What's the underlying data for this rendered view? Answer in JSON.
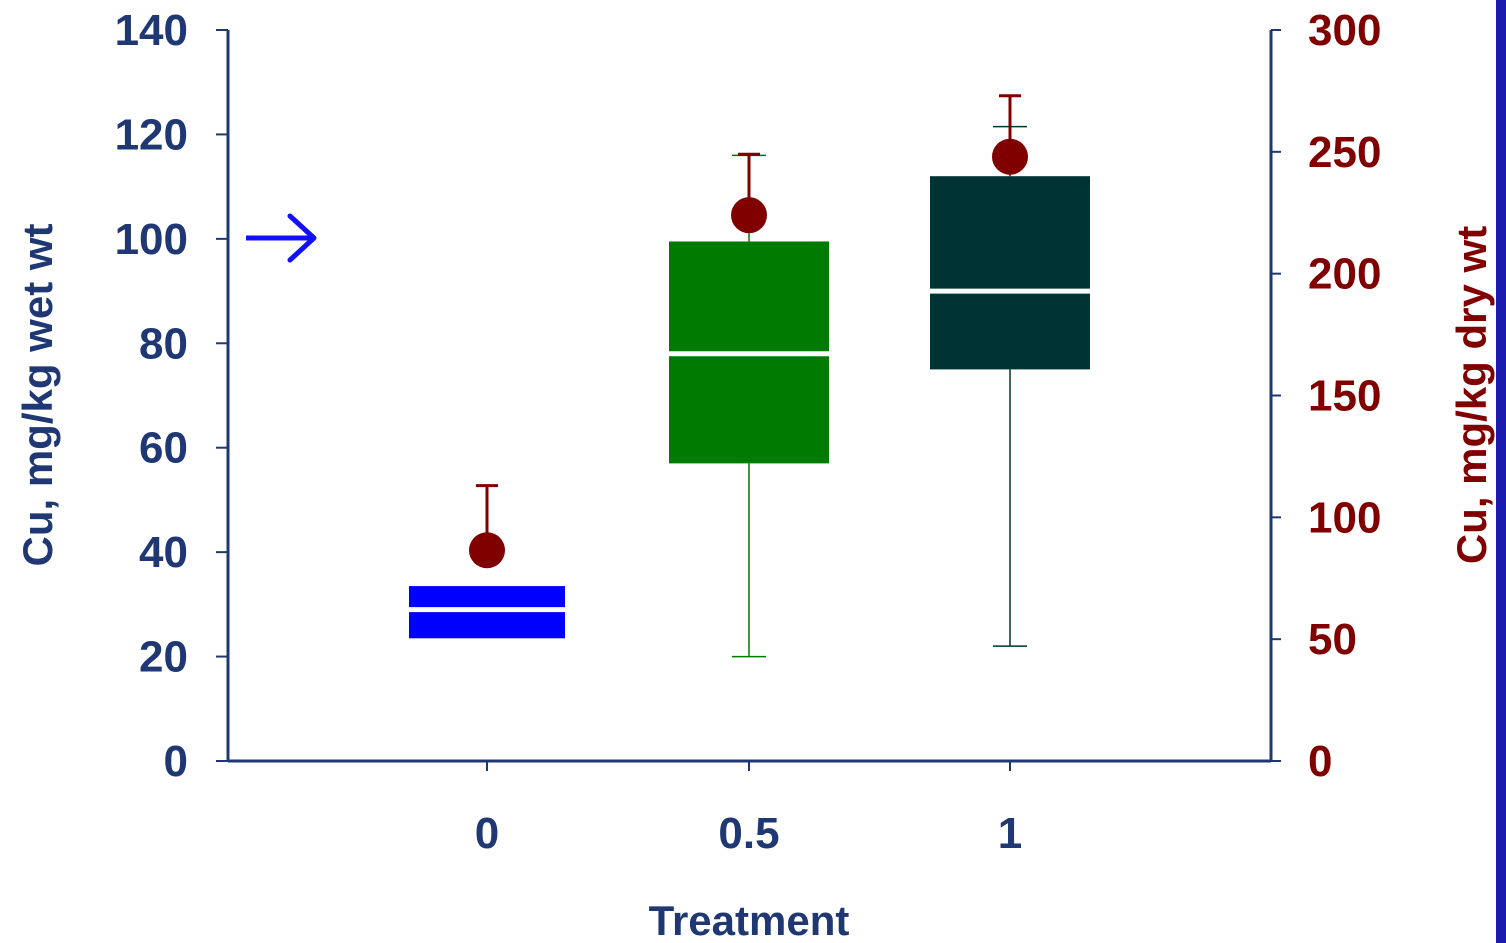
{
  "chart_data": {
    "type": "box",
    "title": "",
    "xlabel": "Treatment",
    "ylabel": "Cu, mg/kg wet wt",
    "y2label": "Cu, mg/kg dry wt",
    "categories": [
      "0",
      "0.5",
      "1"
    ],
    "ylim": [
      0,
      140
    ],
    "y2lim": [
      0,
      300
    ],
    "yticks": [
      "0",
      "20",
      "40",
      "60",
      "80",
      "100",
      "120",
      "140"
    ],
    "y2ticks": [
      "0",
      "50",
      "100",
      "150",
      "200",
      "250",
      "300"
    ],
    "grid": false,
    "boxes": [
      {
        "category": "0",
        "min": 23.5,
        "q1": 23.5,
        "median": 29,
        "q3": 33.5,
        "max": 33.5,
        "color": "#0000ff"
      },
      {
        "category": "0.5",
        "min": 20,
        "q1": 57,
        "median": 78,
        "q3": 99.5,
        "max": 116,
        "color": "#007a00"
      },
      {
        "category": "1",
        "min": 22,
        "q1": 75,
        "median": 90,
        "q3": 112,
        "max": 121.5,
        "color": "#003333"
      }
    ],
    "dry_weight_points": [
      {
        "category": "0",
        "mean": 86.5,
        "upper": 113
      },
      {
        "category": "0.5",
        "mean": 224,
        "upper": 249
      },
      {
        "category": "1",
        "mean": 248,
        "upper": 273
      }
    ],
    "annotations": [
      {
        "type": "arrow",
        "direction": "right",
        "at_y": 100,
        "color": "#1010ff"
      }
    ],
    "colors": {
      "left_axis": "#1f3873",
      "right_axis": "#800000",
      "median_line": "#ffffff",
      "marker": "#800000"
    }
  }
}
